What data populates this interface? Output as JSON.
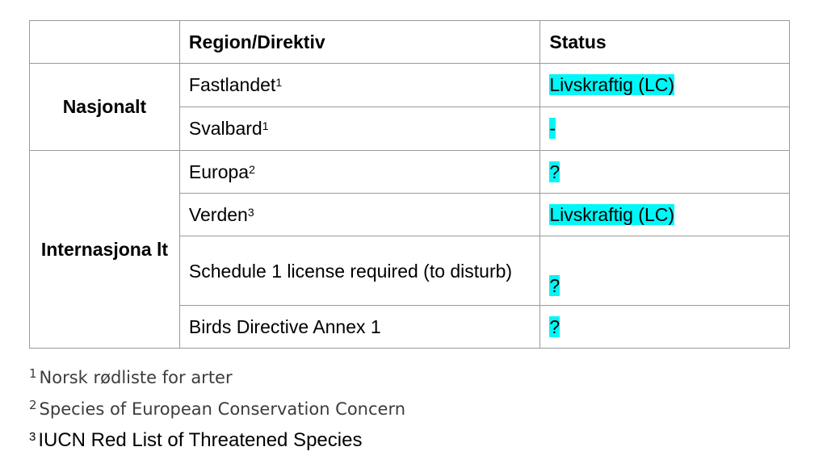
{
  "table": {
    "headers": [
      "",
      "Region/Direktiv",
      "Status"
    ],
    "groups": [
      {
        "label": "Nasjonalt",
        "rows": [
          {
            "region": "Fastlandet",
            "sup": "1",
            "status": "Livskraftig (LC)"
          },
          {
            "region": "Svalbard",
            "sup": "1",
            "status": "-"
          }
        ]
      },
      {
        "label": "Internasjona lt",
        "rows": [
          {
            "region": "Europa",
            "sup": "2",
            "status": "?"
          },
          {
            "region": "Verden",
            "sup": "3",
            "status": "Livskraftig (LC)"
          },
          {
            "region": "Schedule 1 license required (to disturb)",
            "sup": "",
            "status": "?"
          },
          {
            "region": "Birds Directive Annex 1",
            "sup": "",
            "status": "?"
          }
        ]
      }
    ],
    "highlight_color": "#00f7f7"
  },
  "footnotes": [
    {
      "num": "1",
      "text": "Norsk rødliste for arter"
    },
    {
      "num": "2",
      "text": "Species of European Conservation Concern"
    },
    {
      "num": "3",
      "text": "IUCN Red List of Threatened Species"
    }
  ]
}
